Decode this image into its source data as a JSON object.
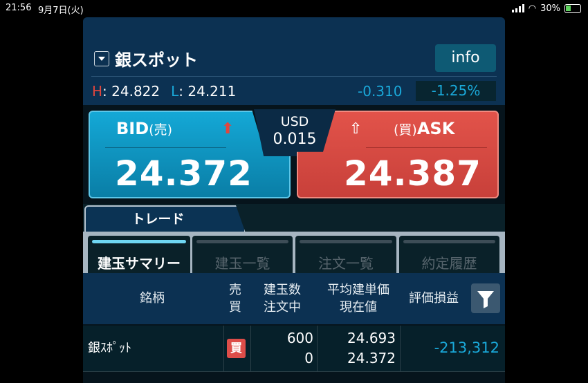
{
  "status": {
    "time": "21:56",
    "date": "9月7日(火)",
    "battery": "30%"
  },
  "header": {
    "title": "銀スポット",
    "info_label": "info",
    "high_label": "H",
    "high": ": 24.822",
    "low_label": "L",
    "low": ": 24.211",
    "change": "-0.310",
    "change_pct": "-1.25%"
  },
  "quote": {
    "bid_label": "BID",
    "bid_sub": "(売)",
    "bid": "24.372",
    "ask_label": "ASK",
    "ask_sub": "(買)",
    "ask": "24.387",
    "spread_ccy": "USD",
    "spread": "0.015"
  },
  "tabs": {
    "main": "トレード",
    "sub": [
      {
        "label": "建玉サマリー",
        "active": true
      },
      {
        "label": "建玉一覧"
      },
      {
        "label": "注文一覧"
      },
      {
        "label": "約定履歴"
      }
    ]
  },
  "table": {
    "headers": {
      "symbol": "銘柄",
      "side1": "売",
      "side2": "買",
      "qty1": "建玉数",
      "qty2": "注文中",
      "price1": "平均建単価",
      "price2": "現在値",
      "pl": "評価損益"
    },
    "rows": [
      {
        "symbol": "銀ｽﾎﾟｯﾄ",
        "side": "買",
        "qty": "600",
        "pending": "0",
        "avg": "24.693",
        "current": "24.372",
        "pl": "-213,312"
      }
    ]
  },
  "colors": {
    "bid": "#14a8d6",
    "ask": "#e2534a",
    "negative": "#1aa9da",
    "header_bg": "#0c3152"
  }
}
